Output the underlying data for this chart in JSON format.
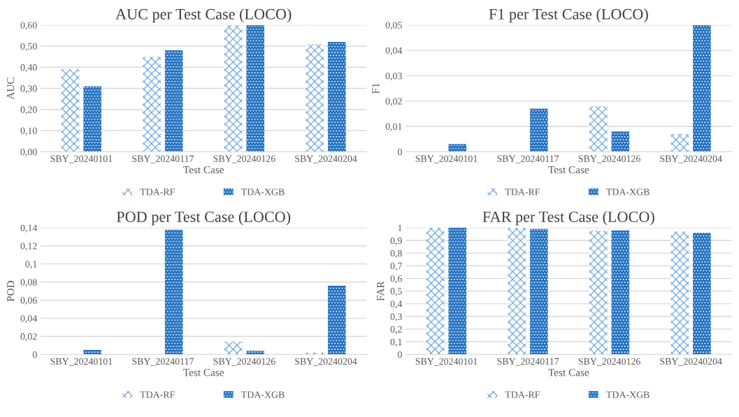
{
  "chart_data": [
    {
      "type": "bar",
      "title": "AUC per Test Case (LOCO)",
      "xlabel": "Test Case",
      "ylabel": "AUC",
      "categories": [
        "SBY_20240101",
        "SBY_20240117",
        "SBY_20240126",
        "SBY_20240204"
      ],
      "series": [
        {
          "name": "TDA-RF",
          "color": "#5b9bd5",
          "values": [
            0.39,
            0.45,
            0.6,
            0.51
          ]
        },
        {
          "name": "TDA-XGB",
          "color": "#1f6fc0",
          "values": [
            0.31,
            0.48,
            0.6,
            0.52
          ]
        }
      ],
      "ylim": [
        0,
        0.6
      ],
      "yticks": [
        {
          "value": 0,
          "label": "0,00"
        },
        {
          "value": 0.1,
          "label": "0,10"
        },
        {
          "value": 0.2,
          "label": "0,20"
        },
        {
          "value": 0.3,
          "label": "0,30"
        },
        {
          "value": 0.4,
          "label": "0,40"
        },
        {
          "value": 0.5,
          "label": "0,50"
        },
        {
          "value": 0.6,
          "label": "0,60"
        }
      ],
      "grid": "y",
      "legend": "bottom"
    },
    {
      "type": "bar",
      "title": "F1 per Test Case (LOCO)",
      "xlabel": "Test Case",
      "ylabel": "F1",
      "categories": [
        "SBY_20240101",
        "SBY_20240117",
        "SBY_20240126",
        "SBY_20240204"
      ],
      "series": [
        {
          "name": "TDA-RF",
          "color": "#5b9bd5",
          "values": [
            0,
            0,
            0.018,
            0.007
          ]
        },
        {
          "name": "TDA-XGB",
          "color": "#1f6fc0",
          "values": [
            0.003,
            0.017,
            0.008,
            0.05
          ]
        }
      ],
      "ylim": [
        0,
        0.05
      ],
      "yticks": [
        0,
        {
          "value": 0.01,
          "label": "0,01"
        },
        {
          "value": 0.02,
          "label": "0,02"
        },
        {
          "value": 0.03,
          "label": "0,03"
        },
        {
          "value": 0.04,
          "label": "0,04"
        },
        {
          "value": 0.05,
          "label": "0,05"
        }
      ],
      "grid": "y",
      "legend": "bottom"
    },
    {
      "type": "bar",
      "title": "POD per Test Case (LOCO)",
      "xlabel": "Test Case",
      "ylabel": "POD",
      "categories": [
        "SBY_20240101",
        "SBY_20240117",
        "SBY_20240126",
        "SBY_20240204"
      ],
      "series": [
        {
          "name": "TDA-RF",
          "color": "#5b9bd5",
          "values": [
            0,
            0,
            0.014,
            0.002
          ]
        },
        {
          "name": "TDA-XGB",
          "color": "#1f6fc0",
          "values": [
            0.005,
            0.138,
            0.004,
            0.076
          ]
        }
      ],
      "ylim": [
        0,
        0.14
      ],
      "yticks": [
        0,
        {
          "value": 0.02,
          "label": "0,02"
        },
        {
          "value": 0.04,
          "label": "0,04"
        },
        {
          "value": 0.06,
          "label": "0,06"
        },
        {
          "value": 0.08,
          "label": "0,08"
        },
        {
          "value": 0.1,
          "label": "0,1"
        },
        {
          "value": 0.12,
          "label": "0,12"
        },
        {
          "value": 0.14,
          "label": "0,14"
        }
      ],
      "grid": "y",
      "legend": "bottom"
    },
    {
      "type": "bar",
      "title": "FAR per Test Case (LOCO)",
      "xlabel": "Test Case",
      "ylabel": "FAR",
      "categories": [
        "SBY_20240101",
        "SBY_20240117",
        "SBY_20240126",
        "SBY_20240204"
      ],
      "series": [
        {
          "name": "TDA-RF",
          "color": "#5b9bd5",
          "values": [
            1.0,
            1.0,
            0.98,
            0.97
          ]
        },
        {
          "name": "TDA-XGB",
          "color": "#1f6fc0",
          "values": [
            1.0,
            0.99,
            0.98,
            0.96
          ]
        }
      ],
      "ylim": [
        0,
        1
      ],
      "yticks": [
        0,
        {
          "value": 0.1,
          "label": "0,1"
        },
        {
          "value": 0.2,
          "label": "0,2"
        },
        {
          "value": 0.3,
          "label": "0,3"
        },
        {
          "value": 0.4,
          "label": "0,4"
        },
        {
          "value": 0.5,
          "label": "0,5"
        },
        {
          "value": 0.6,
          "label": "0,6"
        },
        {
          "value": 0.7,
          "label": "0,7"
        },
        {
          "value": 0.8,
          "label": "0,8"
        },
        {
          "value": 0.9,
          "label": "0,9"
        },
        1
      ],
      "grid": "y",
      "legend": "bottom"
    }
  ]
}
